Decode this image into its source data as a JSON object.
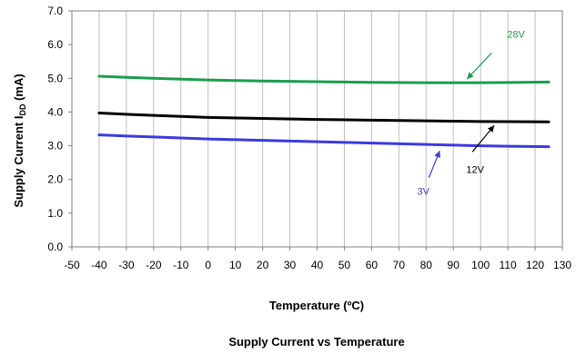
{
  "chart_data": {
    "type": "line",
    "caption": "Supply Current vs Temperature",
    "xlabel": "Temperature (ºC)",
    "ylabel_main": "Supply Current I",
    "ylabel_sub": "DD",
    "ylabel_unit": " (mA)",
    "xlim": [
      -50,
      130
    ],
    "ylim": [
      0,
      7
    ],
    "xticks": [
      -50,
      -40,
      -30,
      -20,
      -10,
      0,
      10,
      20,
      30,
      40,
      50,
      60,
      70,
      80,
      90,
      100,
      110,
      120,
      130
    ],
    "yticks": [
      "0.0",
      "1.0",
      "2.0",
      "3.0",
      "4.0",
      "5.0",
      "6.0",
      "7.0"
    ],
    "grid": "vertical",
    "series": [
      {
        "name": "28V",
        "color": "#1a9e4b",
        "x": [
          -40,
          -20,
          0,
          20,
          40,
          60,
          80,
          100,
          125
        ],
        "y": [
          5.06,
          5.0,
          4.95,
          4.92,
          4.9,
          4.88,
          4.87,
          4.87,
          4.89
        ]
      },
      {
        "name": "12V",
        "color": "#000000",
        "x": [
          -40,
          -20,
          0,
          20,
          40,
          60,
          80,
          100,
          125
        ],
        "y": [
          3.97,
          3.9,
          3.84,
          3.81,
          3.78,
          3.76,
          3.74,
          3.72,
          3.71
        ]
      },
      {
        "name": "3V",
        "color": "#3a3adf",
        "x": [
          -40,
          -20,
          0,
          20,
          40,
          60,
          80,
          100,
          125
        ],
        "y": [
          3.32,
          3.26,
          3.2,
          3.16,
          3.12,
          3.08,
          3.04,
          3.0,
          2.97
        ]
      }
    ],
    "annotations": [
      {
        "text": "28V",
        "color": "#1a9e4b",
        "label_at": [
          113,
          6.2
        ],
        "arrow_from": [
          104,
          5.75
        ],
        "arrow_to": [
          95,
          4.98
        ]
      },
      {
        "text": "12V",
        "color": "#000000",
        "label_at": [
          98,
          2.2
        ],
        "arrow_from": [
          97,
          2.82
        ],
        "arrow_to": [
          105,
          3.6
        ]
      },
      {
        "text": "3V",
        "color": "#3a3adf",
        "label_at": [
          79,
          1.55
        ],
        "arrow_from": [
          81,
          2.05
        ],
        "arrow_to": [
          85,
          2.85
        ]
      }
    ]
  }
}
